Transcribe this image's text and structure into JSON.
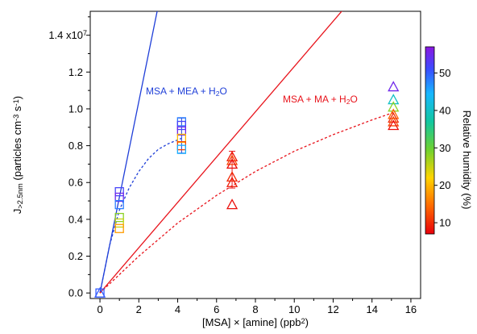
{
  "chart_data": {
    "type": "scatter",
    "xlabel": "[MSA] × [amine] (ppb²)",
    "ylabel": "J>2.5nm (particles cm⁻³ s⁻¹)",
    "xlim": [
      -0.5,
      16.5
    ],
    "ylim": [
      -0.03,
      1.53
    ],
    "xticks": [
      0,
      2,
      4,
      6,
      8,
      10,
      12,
      14,
      16
    ],
    "yticks": [
      0.0,
      0.2,
      0.4,
      0.6,
      0.8,
      1.0,
      1.2,
      1.4
    ],
    "xtick_labels": [
      "0",
      "2",
      "4",
      "6",
      "8",
      "10",
      "12",
      "14",
      "16"
    ],
    "ytick_labels": [
      "0.0",
      "0.2",
      "0.4",
      "0.6",
      "0.8",
      "1.0",
      "1.2",
      "1.4 x10"
    ],
    "ytick_exponent": "7",
    "grid": false,
    "colorbar": {
      "label": "Relative humidity (%)",
      "range": [
        7,
        57
      ],
      "ticks": [
        10,
        20,
        30,
        40,
        50
      ],
      "tick_labels": [
        "10",
        "20",
        "30",
        "40",
        "50"
      ]
    },
    "series": [
      {
        "name": "MSA + MEA + H₂O",
        "marker": "square",
        "color": "#1f3fd8",
        "points": [
          {
            "x": 0,
            "y": 0.0,
            "rh": 50
          },
          {
            "x": 1,
            "y": 0.55,
            "rh": 52
          },
          {
            "x": 1,
            "y": 0.52,
            "rh": 55
          },
          {
            "x": 1,
            "y": 0.48,
            "rh": 48
          },
          {
            "x": 1,
            "y": 0.41,
            "rh": 28
          },
          {
            "x": 1,
            "y": 0.38,
            "rh": 25
          },
          {
            "x": 1,
            "y": 0.35,
            "rh": 18
          },
          {
            "x": 4.2,
            "y": 0.93,
            "rh": 48
          },
          {
            "x": 4.2,
            "y": 0.91,
            "rh": 52
          },
          {
            "x": 4.2,
            "y": 0.88,
            "rh": 55
          },
          {
            "x": 4.2,
            "y": 0.84,
            "rh": 20
          },
          {
            "x": 4.2,
            "y": 0.8,
            "rh": 12
          },
          {
            "x": 4.2,
            "y": 0.78,
            "rh": 45
          }
        ],
        "linear_fit": {
          "slope": 0.52
        },
        "saturation_curve": {
          "x": [
            0.0,
            0.5,
            1.0,
            1.5,
            2.0,
            2.5,
            3.0,
            3.5,
            4.2
          ],
          "y": [
            0.0,
            0.26,
            0.45,
            0.57,
            0.66,
            0.73,
            0.78,
            0.81,
            0.84
          ]
        }
      },
      {
        "name": "MSA + MA + H₂O",
        "marker": "triangle",
        "color": "#e8141c",
        "points": [
          {
            "x": 0,
            "y": 0.0,
            "rh": 50
          },
          {
            "x": 6.8,
            "y": 0.74,
            "rh": 9
          },
          {
            "x": 6.8,
            "y": 0.72,
            "rh": 12
          },
          {
            "x": 6.8,
            "y": 0.7,
            "rh": 8
          },
          {
            "x": 6.8,
            "y": 0.63,
            "rh": 10
          },
          {
            "x": 6.8,
            "y": 0.6,
            "rh": 9
          },
          {
            "x": 6.8,
            "y": 0.48,
            "rh": 8
          },
          {
            "x": 15.1,
            "y": 1.12,
            "rh": 55
          },
          {
            "x": 15.1,
            "y": 1.05,
            "rh": 40
          },
          {
            "x": 15.1,
            "y": 1.01,
            "rh": 28
          },
          {
            "x": 15.1,
            "y": 0.97,
            "rh": 14
          },
          {
            "x": 15.1,
            "y": 0.95,
            "rh": 10
          },
          {
            "x": 15.1,
            "y": 0.93,
            "rh": 12
          },
          {
            "x": 15.1,
            "y": 0.91,
            "rh": 8
          }
        ],
        "linear_fit": {
          "slope": 0.123
        },
        "saturation_curve": {
          "x": [
            0,
            2,
            4,
            6,
            8,
            10,
            12,
            14,
            15.1
          ],
          "y": [
            0.0,
            0.2,
            0.38,
            0.53,
            0.66,
            0.77,
            0.86,
            0.94,
            0.98
          ]
        }
      }
    ],
    "error_bars": [
      {
        "x": 4.2,
        "y_low": 0.76,
        "y_high": 0.95,
        "color": "#1f3fd8"
      },
      {
        "x": 6.8,
        "y_low": 0.57,
        "y_high": 0.77,
        "color": "#e8141c"
      }
    ]
  }
}
